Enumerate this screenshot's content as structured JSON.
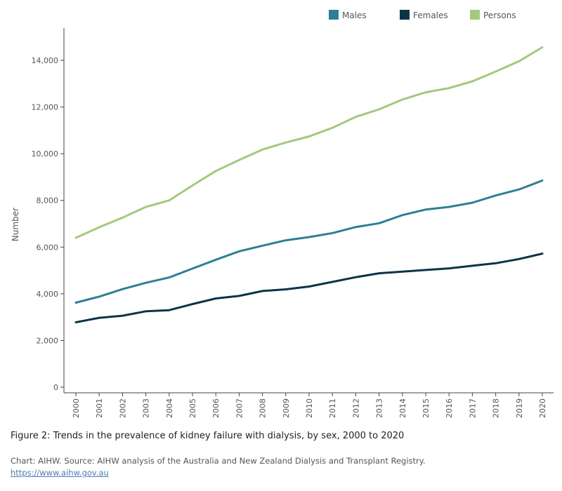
{
  "chart_data": {
    "type": "line",
    "title": "",
    "xlabel": "",
    "ylabel": "Number",
    "ylim": [
      0,
      15000
    ],
    "yticks": [
      0,
      2000,
      4000,
      6000,
      8000,
      10000,
      12000,
      14000
    ],
    "ytick_labels": [
      "0",
      "2,000",
      "4,000",
      "6,000",
      "8,000",
      "10,000",
      "12,000",
      "14,000"
    ],
    "grid": false,
    "legend_position": "top-right",
    "categories": [
      "2000",
      "2001",
      "2002",
      "2003",
      "2004",
      "2005",
      "2006",
      "2007",
      "2008",
      "2009",
      "2010",
      "2011",
      "2012",
      "2013",
      "2014",
      "2015",
      "2016",
      "2017",
      "2018",
      "2019",
      "2020"
    ],
    "series": [
      {
        "name": "Males",
        "color": "#2d7f96",
        "values": [
          3620,
          3880,
          4200,
          4470,
          4700,
          5080,
          5460,
          5820,
          6060,
          6290,
          6430,
          6600,
          6860,
          7020,
          7370,
          7610,
          7720,
          7900,
          8210,
          8470,
          8850
        ]
      },
      {
        "name": "Females",
        "color": "#0e3347",
        "values": [
          2780,
          2970,
          3060,
          3250,
          3300,
          3560,
          3800,
          3910,
          4120,
          4190,
          4310,
          4510,
          4710,
          4880,
          4950,
          5020,
          5090,
          5200,
          5310,
          5490,
          5720
        ]
      },
      {
        "name": "Persons",
        "color": "#a3c97e",
        "values": [
          6400,
          6850,
          7260,
          7720,
          8000,
          8640,
          9260,
          9730,
          10180,
          10480,
          10740,
          11110,
          11580,
          11900,
          12320,
          12630,
          12810,
          13100,
          13520,
          13960,
          14560
        ]
      }
    ]
  },
  "caption": "Figure 2: Trends in the prevalence of kidney failure with dialysis, by sex, 2000 to 2020",
  "source": "Chart: AIHW. Source: AIHW analysis of the Australia and New Zealand Dialysis and Transplant Registry.",
  "link": "https://www.aihw.gov.au"
}
